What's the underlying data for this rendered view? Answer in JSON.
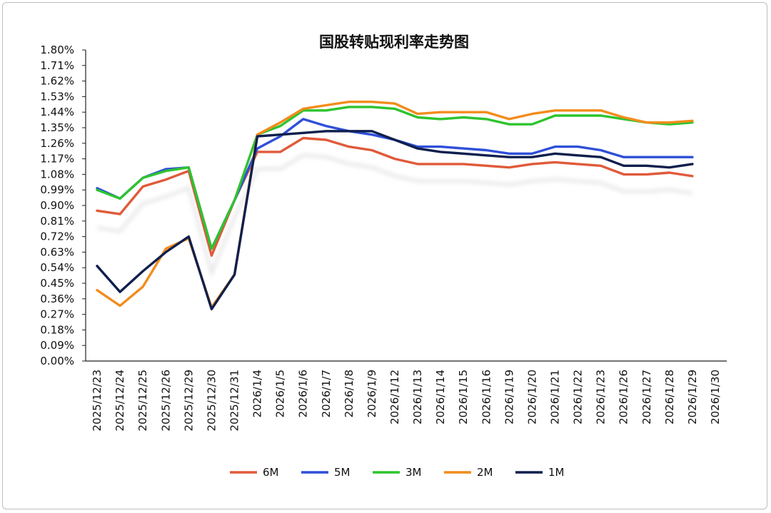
{
  "chart_data": {
    "type": "line",
    "title": "国股转贴现利率走势图",
    "xlabel": "",
    "ylabel": "",
    "ylim": [
      0,
      1.8
    ],
    "y_ticks": [
      "0.00%",
      "0.09%",
      "0.18%",
      "0.27%",
      "0.36%",
      "0.45%",
      "0.54%",
      "0.63%",
      "0.72%",
      "0.81%",
      "0.90%",
      "0.99%",
      "1.08%",
      "1.17%",
      "1.26%",
      "1.35%",
      "1.44%",
      "1.53%",
      "1.62%",
      "1.71%",
      "1.80%"
    ],
    "categories": [
      "2025/12/23",
      "2025/12/24",
      "2025/12/25",
      "2025/12/26",
      "2025/12/29",
      "2025/12/30",
      "2025/12/31",
      "2026/1/4",
      "2026/1/5",
      "2026/1/6",
      "2026/1/7",
      "2026/1/8",
      "2026/1/9",
      "2026/1/12",
      "2026/1/13",
      "2026/1/14",
      "2026/1/15",
      "2026/1/16",
      "2026/1/19",
      "2026/1/20",
      "2026/1/21",
      "2026/1/22",
      "2026/1/23",
      "2026/1/26",
      "2026/1/27",
      "2026/1/28",
      "2026/1/29",
      "2026/1/30"
    ],
    "grid": false,
    "legend_position": "bottom",
    "series": [
      {
        "name": "6M",
        "color": "#e05a3a",
        "values": [
          0.87,
          0.85,
          1.01,
          1.05,
          1.1,
          0.61,
          0.93,
          1.21,
          1.21,
          1.29,
          1.28,
          1.24,
          1.22,
          1.17,
          1.14,
          1.14,
          1.14,
          1.13,
          1.12,
          1.14,
          1.15,
          1.14,
          1.13,
          1.08,
          1.08,
          1.09,
          1.07,
          null
        ]
      },
      {
        "name": "5M",
        "color": "#2f4fd8",
        "values": [
          1.0,
          0.94,
          1.06,
          1.11,
          1.12,
          0.65,
          0.93,
          1.23,
          1.3,
          1.4,
          1.36,
          1.33,
          1.31,
          1.28,
          1.24,
          1.24,
          1.23,
          1.22,
          1.2,
          1.2,
          1.24,
          1.24,
          1.22,
          1.18,
          1.18,
          1.18,
          1.18,
          null
        ]
      },
      {
        "name": "3M",
        "color": "#2ec42e",
        "values": [
          0.99,
          0.94,
          1.06,
          1.1,
          1.12,
          0.65,
          0.93,
          1.31,
          1.36,
          1.45,
          1.45,
          1.47,
          1.47,
          1.46,
          1.41,
          1.4,
          1.41,
          1.4,
          1.37,
          1.37,
          1.42,
          1.42,
          1.42,
          1.4,
          1.38,
          1.37,
          1.38,
          null
        ]
      },
      {
        "name": "2M",
        "color": "#f28c1c",
        "values": [
          0.41,
          0.32,
          0.43,
          0.65,
          0.71,
          0.31,
          0.5,
          1.31,
          1.38,
          1.46,
          1.48,
          1.5,
          1.5,
          1.49,
          1.43,
          1.44,
          1.44,
          1.44,
          1.4,
          1.43,
          1.45,
          1.45,
          1.45,
          1.41,
          1.38,
          1.38,
          1.39,
          null
        ]
      },
      {
        "name": "1M",
        "color": "#0f1f4d",
        "values": [
          0.55,
          0.4,
          0.52,
          0.63,
          0.72,
          0.3,
          0.5,
          1.3,
          1.31,
          1.32,
          1.33,
          1.33,
          1.33,
          1.28,
          1.23,
          1.21,
          1.2,
          1.19,
          1.18,
          1.18,
          1.2,
          1.19,
          1.18,
          1.13,
          1.13,
          1.12,
          1.14,
          null
        ]
      }
    ]
  }
}
